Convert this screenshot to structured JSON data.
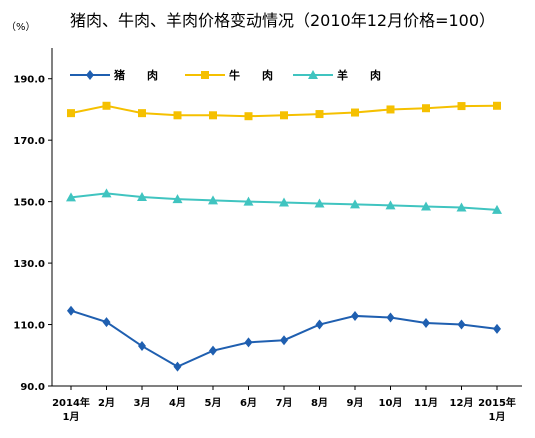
{
  "chart_data": {
    "type": "line",
    "title": "猪肉、牛肉、羊肉价格变动情况（2010年12月价格=100）",
    "unit_label": "（%）",
    "categories": [
      [
        "2014年",
        "1月"
      ],
      [
        "2月"
      ],
      [
        "3月"
      ],
      [
        "4月"
      ],
      [
        "5月"
      ],
      [
        "6月"
      ],
      [
        "7月"
      ],
      [
        "8月"
      ],
      [
        "9月"
      ],
      [
        "10月"
      ],
      [
        "11月"
      ],
      [
        "12月"
      ],
      [
        "2015年",
        "1月"
      ]
    ],
    "ylim": [
      90,
      200
    ],
    "yticks": [
      "90.0",
      "110.0",
      "130.0",
      "150.0",
      "170.0",
      "190.0"
    ],
    "ytick_values": [
      90,
      110,
      130,
      150,
      170,
      190
    ],
    "grid": false,
    "legend_position": "top-left",
    "series": [
      {
        "name": "猪　　肉",
        "color": "#1f5fb0",
        "marker": "diamond",
        "values": [
          114.5,
          110.8,
          103.0,
          96.3,
          101.5,
          104.2,
          104.9,
          110.0,
          112.8,
          112.3,
          110.5,
          110.0,
          108.6
        ]
      },
      {
        "name": "牛　　肉",
        "color": "#f5c000",
        "marker": "square",
        "values": [
          178.8,
          181.2,
          178.8,
          178.1,
          178.1,
          177.8,
          178.1,
          178.5,
          179.0,
          180.0,
          180.4,
          181.1,
          181.2
        ]
      },
      {
        "name": "羊　　肉",
        "color": "#40c4c0",
        "marker": "triangle",
        "values": [
          151.4,
          152.7,
          151.5,
          150.8,
          150.4,
          150.0,
          149.7,
          149.4,
          149.1,
          148.8,
          148.4,
          148.1,
          147.3
        ]
      }
    ]
  }
}
